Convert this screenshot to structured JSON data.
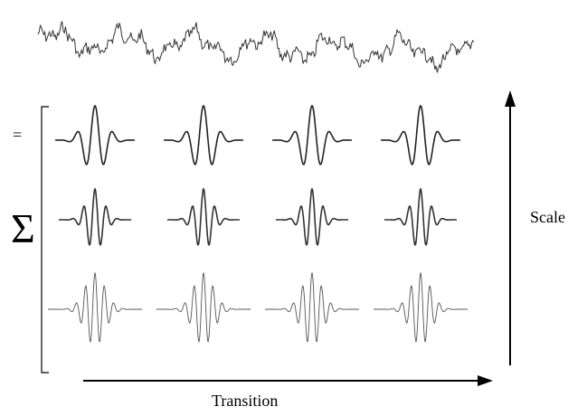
{
  "symbols": {
    "equals": "=",
    "sum": "Σ"
  },
  "labels": {
    "scale": "Scale",
    "transition": "Transition"
  },
  "diagram": {
    "wavelet_rows": 3,
    "wavelets_per_row": 4,
    "row_styles": [
      {
        "cycles": 2.2,
        "decay": 3.0,
        "stroke": "#222222"
      },
      {
        "cycles": 3.2,
        "decay": 3.6,
        "stroke": "#333333"
      },
      {
        "cycles": 5.0,
        "decay": 4.6,
        "stroke": "#555555"
      }
    ],
    "signal_color": "#333333",
    "axis_color": "#000000"
  }
}
